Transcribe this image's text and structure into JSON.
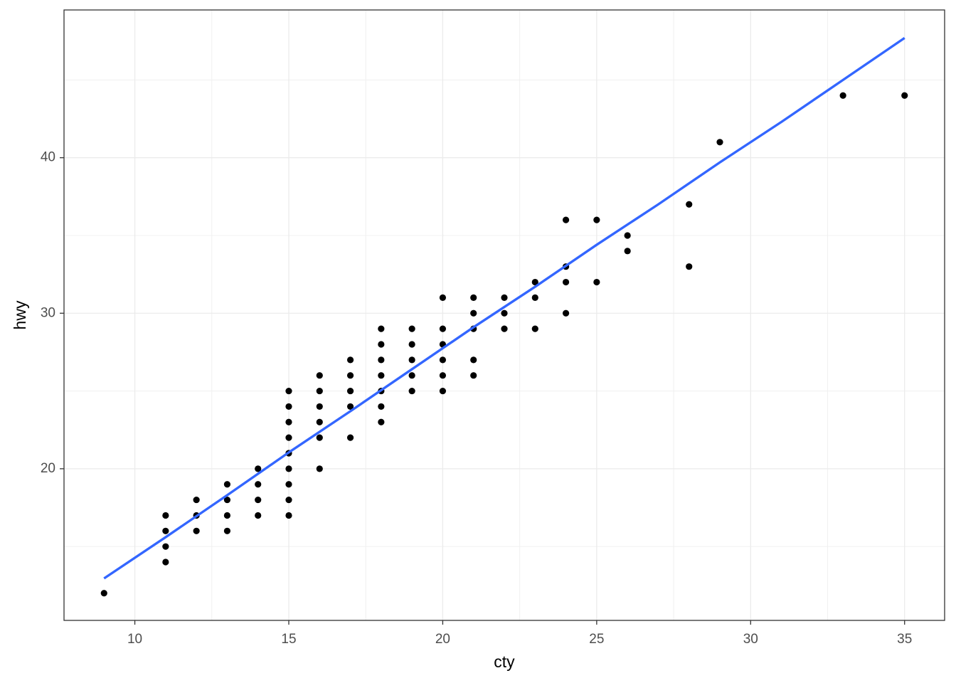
{
  "chart_data": {
    "type": "scatter",
    "x_label": "cty",
    "y_label": "hwy",
    "x": [
      9,
      11,
      11,
      11,
      11,
      12,
      12,
      12,
      13,
      13,
      13,
      13,
      14,
      14,
      14,
      14,
      15,
      15,
      15,
      15,
      15,
      15,
      15,
      15,
      15,
      16,
      16,
      16,
      16,
      16,
      16,
      17,
      17,
      17,
      17,
      17,
      18,
      18,
      18,
      18,
      18,
      18,
      18,
      19,
      19,
      19,
      19,
      19,
      20,
      20,
      20,
      20,
      20,
      20,
      21,
      21,
      21,
      21,
      21,
      22,
      22,
      22,
      23,
      23,
      23,
      24,
      24,
      24,
      24,
      25,
      25,
      26,
      26,
      28,
      28,
      29,
      33,
      35
    ],
    "y": [
      12,
      14,
      15,
      16,
      17,
      16,
      17,
      18,
      16,
      17,
      18,
      19,
      17,
      18,
      19,
      20,
      17,
      18,
      19,
      20,
      21,
      22,
      23,
      24,
      25,
      20,
      22,
      23,
      24,
      25,
      26,
      22,
      24,
      25,
      26,
      27,
      23,
      24,
      25,
      26,
      27,
      28,
      29,
      25,
      26,
      27,
      28,
      29,
      25,
      26,
      27,
      28,
      29,
      31,
      26,
      27,
      29,
      30,
      31,
      29,
      30,
      31,
      29,
      31,
      32,
      30,
      32,
      33,
      36,
      32,
      36,
      34,
      35,
      33,
      37,
      41,
      44,
      44
    ],
    "color": "#000000",
    "smooth": {
      "x": [
        9,
        11,
        13,
        15,
        17,
        19,
        21,
        23,
        25,
        27,
        29,
        31,
        33,
        35
      ],
      "y": [
        12.95,
        15.6,
        18.3,
        21.05,
        23.7,
        26.4,
        29.1,
        31.7,
        34.4,
        37.0,
        39.7,
        42.3,
        45.0,
        47.7
      ],
      "color": "#3366ff"
    },
    "xlim": [
      7.7,
      36.3
    ],
    "ylim": [
      10.25,
      49.5
    ],
    "xticks": [
      10,
      15,
      20,
      25,
      30,
      35
    ],
    "yticks": [
      20,
      30,
      40
    ],
    "xminor": [
      12.5,
      17.5,
      22.5,
      27.5,
      32.5
    ],
    "yminor": [
      15,
      25,
      35,
      45
    ],
    "grid": true
  }
}
